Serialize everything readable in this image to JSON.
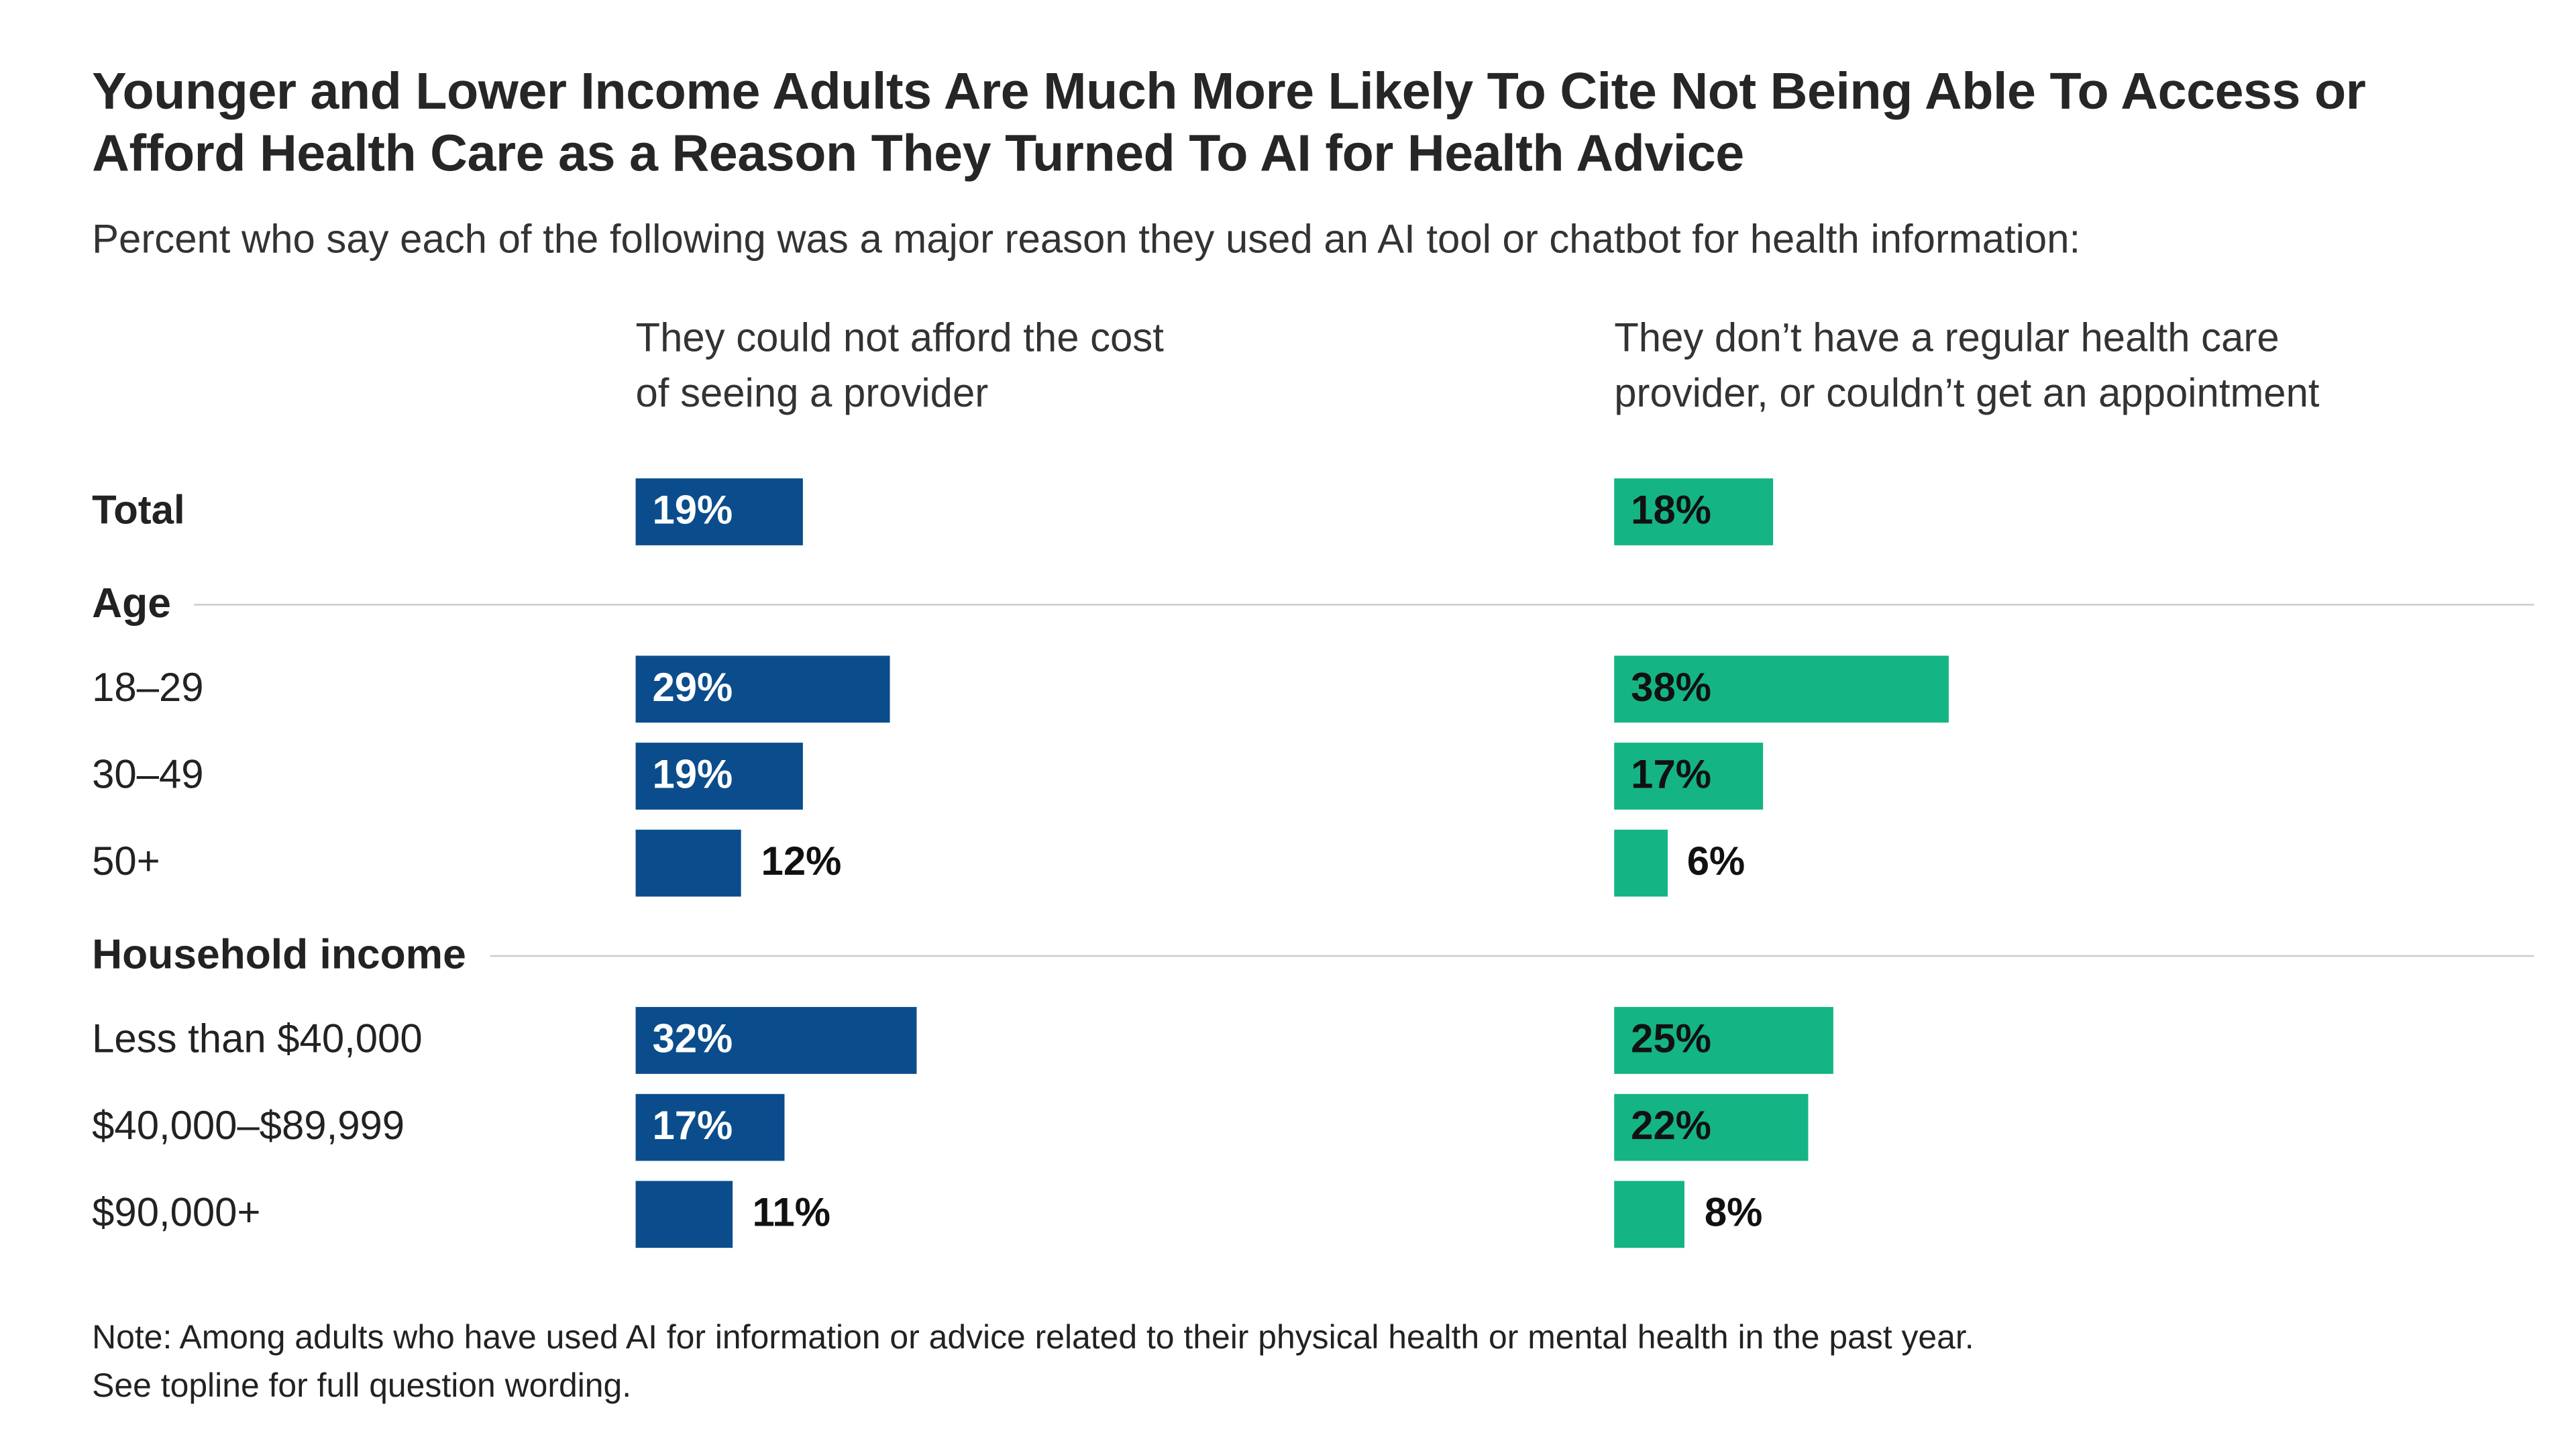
{
  "chart_data": {
    "type": "bar",
    "orientation": "horizontal",
    "title": "Younger and Lower Income Adults Are Much More Likely To Cite Not Being Able To Access or Afford Health Care as a Reason They Turned To AI for Health Advice",
    "subtitle": "Percent who say each of the following was a major reason they used an AI tool or chatbot for health information:",
    "series": [
      {
        "name": "They could not afford the cost of seeing a provider",
        "color": "#0b4d8c",
        "label_color_inside": "#ffffff"
      },
      {
        "name": "They don’t have a regular health care provider, or couldn’t get an appointment",
        "color": "#14b485",
        "label_color_inside": "#111111"
      }
    ],
    "rows": [
      {
        "kind": "bar",
        "label": "Total",
        "bold": true,
        "values": [
          19,
          18
        ]
      },
      {
        "kind": "section",
        "label": "Age"
      },
      {
        "kind": "bar",
        "label": "18–29",
        "values": [
          29,
          38
        ]
      },
      {
        "kind": "bar",
        "label": "30–49",
        "values": [
          19,
          17
        ]
      },
      {
        "kind": "bar",
        "label": "50+",
        "values": [
          12,
          6
        ]
      },
      {
        "kind": "section",
        "label": "Household income"
      },
      {
        "kind": "bar",
        "label": "Less than $40,000",
        "values": [
          32,
          25
        ]
      },
      {
        "kind": "bar",
        "label": "$40,000–$89,999",
        "values": [
          17,
          22
        ]
      },
      {
        "kind": "bar",
        "label": "$90,000+",
        "values": [
          11,
          8
        ]
      }
    ],
    "value_suffix": "%",
    "xlim": [
      0,
      100
    ],
    "grid": false,
    "legend_position": "column-headers",
    "note_lines": [
      "Note: Among adults who have used AI for information or advice related to their physical health or mental health in the past year.",
      "See topline for full question wording."
    ]
  }
}
